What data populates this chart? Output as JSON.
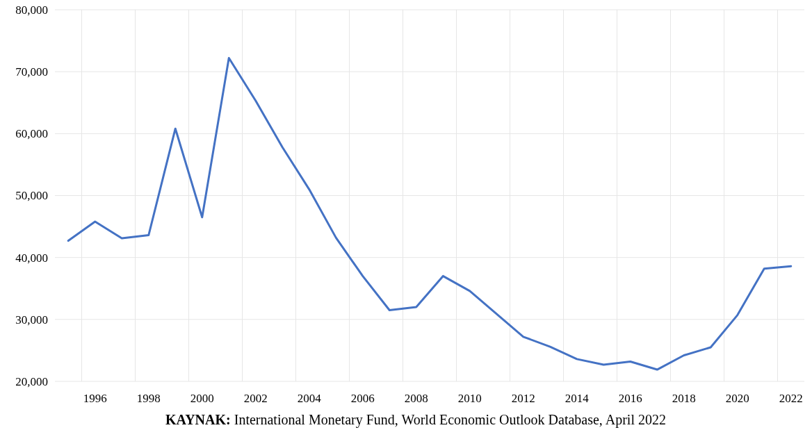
{
  "chart_data": {
    "type": "line",
    "categories": [
      null,
      "1996",
      null,
      "1998",
      null,
      "2000",
      null,
      "2002",
      null,
      "2004",
      null,
      "2006",
      null,
      "2008",
      null,
      "2010",
      null,
      "2012",
      null,
      "2014",
      null,
      "2016",
      null,
      "2018",
      null,
      "2020",
      null,
      "2022"
    ],
    "series": [
      {
        "color": "#4472c4",
        "values": [
          42700,
          45800,
          43100,
          43600,
          60800,
          46500,
          72200,
          65300,
          57800,
          51000,
          43200,
          37000,
          31500,
          32000,
          37000,
          34600,
          30900,
          27200,
          25600,
          23600,
          22700,
          23200,
          21900,
          24200,
          25500,
          30700,
          38200,
          38600
        ]
      }
    ],
    "ylim": [
      20000,
      80000
    ],
    "yticks": [
      {
        "value": 20000,
        "label": "20,000"
      },
      {
        "value": 30000,
        "label": "30,000"
      },
      {
        "value": 40000,
        "label": "40,000"
      },
      {
        "value": 50000,
        "label": "50,000"
      },
      {
        "value": 60000,
        "label": "60,000"
      },
      {
        "value": 70000,
        "label": "70,000"
      },
      {
        "value": 80000,
        "label": "80,000"
      }
    ],
    "grid": true,
    "marker": "none",
    "line_style": "solid",
    "annotations": [
      "KAYNAK: International Monetary Fund, World Economic Outlook Database, April 2022"
    ]
  }
}
